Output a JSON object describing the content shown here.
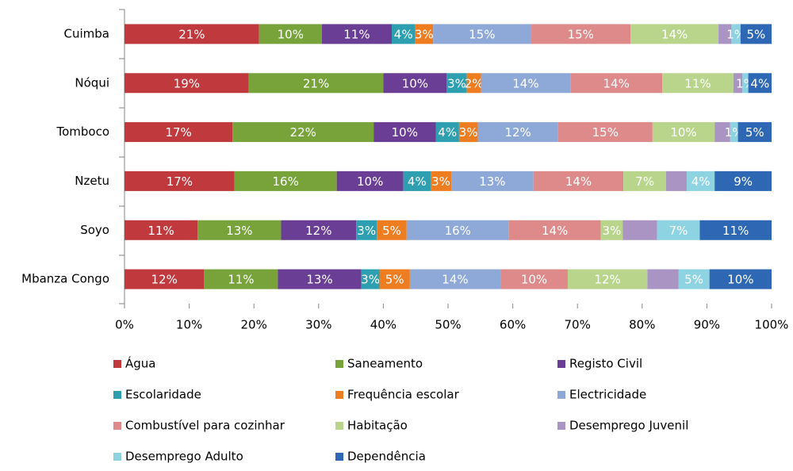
{
  "chart_data": {
    "type": "stacked-bar-horizontal",
    "categories": [
      "Cuimba",
      "Nóqui",
      "Tomboco",
      "Nzetu",
      "Soyo",
      "Mbanza Congo"
    ],
    "series": [
      {
        "name": "Água",
        "color": "#c0393d",
        "values": [
          20.8,
          19.2,
          16.7,
          17.0,
          11.3,
          12.3
        ],
        "value_labels": [
          "21%",
          "19%",
          "17%",
          "17%",
          "11%",
          "12%"
        ]
      },
      {
        "name": "Saneamento",
        "color": "#77a33a",
        "values": [
          9.7,
          20.8,
          21.8,
          15.8,
          12.9,
          11.4
        ],
        "value_labels": [
          "10%",
          "21%",
          "22%",
          "16%",
          "13%",
          "11%"
        ]
      },
      {
        "name": "Registo Civil",
        "color": "#6a3e94",
        "values": [
          10.8,
          9.8,
          9.6,
          10.3,
          11.6,
          12.9
        ],
        "value_labels": [
          "11%",
          "10%",
          "10%",
          "10%",
          "12%",
          "13%"
        ]
      },
      {
        "name": "Escolaridade",
        "color": "#2e9fb0",
        "values": [
          3.6,
          3.1,
          3.6,
          4.2,
          3.2,
          2.8
        ],
        "value_labels": [
          "4%",
          "3%",
          "4%",
          "4%",
          "3%",
          "3%"
        ]
      },
      {
        "name": "Frequência escolar",
        "color": "#ee7d22",
        "values": [
          2.8,
          2.2,
          2.9,
          3.2,
          4.6,
          4.7
        ],
        "value_labels": [
          "3%",
          "2%",
          "3%",
          "3%",
          "5%",
          "5%"
        ]
      },
      {
        "name": "Electricidade",
        "color": "#8ea9d8",
        "values": [
          15.1,
          13.8,
          12.4,
          12.7,
          15.8,
          14.0
        ],
        "value_labels": [
          "15%",
          "14%",
          "12%",
          "13%",
          "16%",
          "14%"
        ]
      },
      {
        "name": "Combustível para cozinhar",
        "color": "#de8a8a",
        "values": [
          15.4,
          14.2,
          14.6,
          13.9,
          14.2,
          10.4
        ],
        "value_labels": [
          "15%",
          "14%",
          "15%",
          "14%",
          "14%",
          "10%"
        ]
      },
      {
        "name": "Habitação",
        "color": "#b9d58c",
        "values": [
          13.6,
          11.0,
          9.6,
          6.6,
          3.4,
          12.3
        ],
        "value_labels": [
          "14%",
          "11%",
          "10%",
          "7%",
          "3%",
          "12%"
        ]
      },
      {
        "name": "Desemprego Juvenil",
        "color": "#a994c4",
        "values": [
          2.0,
          1.4,
          2.4,
          3.2,
          5.3,
          4.8
        ],
        "value_labels": [
          null,
          null,
          null,
          null,
          null,
          null
        ]
      },
      {
        "name": "Desemprego Adulto",
        "color": "#8ed3e2",
        "values": [
          1.4,
          0.9,
          1.2,
          4.3,
          6.6,
          4.8
        ],
        "value_labels": [
          "1%",
          "1%",
          "1%",
          "4%",
          "7%",
          "5%"
        ]
      },
      {
        "name": "Dependência",
        "color": "#2e68b4",
        "values": [
          4.8,
          3.6,
          5.2,
          8.8,
          11.1,
          9.6
        ],
        "value_labels": [
          "5%",
          "4%",
          "5%",
          "9%",
          "11%",
          "10%"
        ]
      }
    ],
    "xlim": [
      0,
      100
    ],
    "xticks": [
      {
        "value": 0,
        "label": "0%"
      },
      {
        "value": 10,
        "label": "10%"
      },
      {
        "value": 20,
        "label": "20%"
      },
      {
        "value": 30,
        "label": "30%"
      },
      {
        "value": 40,
        "label": "40%"
      },
      {
        "value": 50,
        "label": "50%"
      },
      {
        "value": 60,
        "label": "60%"
      },
      {
        "value": 70,
        "label": "70%"
      },
      {
        "value": 80,
        "label": "80%"
      },
      {
        "value": 90,
        "label": "90%"
      },
      {
        "value": 100,
        "label": "100%"
      }
    ],
    "legend": "bottom"
  }
}
